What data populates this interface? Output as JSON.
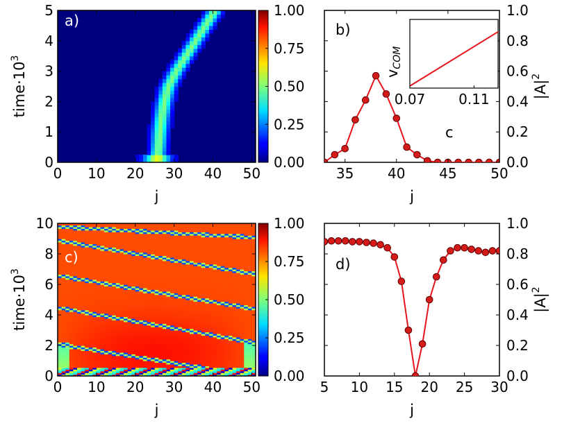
{
  "colors": {
    "line": "#e8141c",
    "marker_fill": "#d61a1a",
    "marker_edge": "#5a0000",
    "axis": "#000000",
    "heat_low": "#00007f",
    "heat_high": "#7f0000"
  },
  "chart_data": [
    {
      "id": "a",
      "type": "heatmap",
      "panel_label": "a)",
      "xlabel": "j",
      "ylabel": "time·10",
      "ylabel_sup": "3",
      "xlim": [
        0,
        51
      ],
      "ylim": [
        0,
        5
      ],
      "xticks": [
        0,
        10,
        20,
        30,
        40,
        50
      ],
      "yticks": [
        0,
        1,
        2,
        3,
        4,
        5
      ],
      "colormap": "jet",
      "colorbar": {
        "range": [
          0,
          1
        ],
        "ticks": [
          "0.00",
          "0.25",
          "0.50",
          "0.75",
          "1.00"
        ]
      },
      "description_data": {
        "background_value": 0.05,
        "ridge_center_j": [
          [
            0,
            25.5
          ],
          [
            0.5,
            26
          ],
          [
            1,
            26.3
          ],
          [
            1.5,
            26.8
          ],
          [
            2,
            27.5
          ],
          [
            2.5,
            28.5
          ],
          [
            3,
            30.5
          ],
          [
            3.5,
            33
          ],
          [
            4,
            35.5
          ],
          [
            4.5,
            38
          ],
          [
            5,
            40.5
          ]
        ],
        "ridge_peak_value": 0.45
      }
    },
    {
      "id": "b",
      "type": "line",
      "panel_label": "b)",
      "xlabel": "j",
      "ylabel": "|A|",
      "ylabel_sup": "2",
      "xlim": [
        33,
        50
      ],
      "ylim": [
        0,
        1
      ],
      "xticks": [
        35,
        40,
        45,
        50
      ],
      "yticks": [
        "0.0",
        "0.2",
        "0.4",
        "0.6",
        "0.8",
        "1.0"
      ],
      "series": [
        {
          "name": "|A|^2",
          "x": [
            33,
            34,
            35,
            36,
            37,
            38,
            39,
            40,
            41,
            42,
            43,
            44,
            45,
            46,
            47,
            48,
            49,
            50
          ],
          "values": [
            0.0,
            0.05,
            0.09,
            0.28,
            0.41,
            0.57,
            0.45,
            0.29,
            0.1,
            0.05,
            0.01,
            0.0,
            0.0,
            0.0,
            0.0,
            0.0,
            0.0,
            0.0
          ]
        }
      ],
      "inset": {
        "type": "line",
        "ylabel": "v",
        "ylabel_sub": "COM",
        "xlabel": "c",
        "xlim": [
          0.07,
          0.125
        ],
        "xticks": [
          "0.07",
          "0.11"
        ],
        "xtick_values": [
          0.07,
          0.11
        ],
        "x": [
          0.07,
          0.125
        ],
        "values": [
          0.03,
          0.82
        ],
        "ylim": [
          0,
          1
        ]
      }
    },
    {
      "id": "c",
      "type": "heatmap",
      "panel_label": "c)",
      "xlabel": "j",
      "ylabel": "time·10",
      "ylabel_sup": "3",
      "xlim": [
        0,
        51
      ],
      "ylim": [
        0,
        10
      ],
      "xticks": [
        0,
        10,
        20,
        30,
        40,
        50
      ],
      "yticks": [
        0,
        2,
        4,
        6,
        8,
        10
      ],
      "colormap": "jet",
      "colorbar": {
        "range": [
          0,
          1
        ],
        "ticks": [
          "0.00",
          "0.25",
          "0.50",
          "0.75",
          "1.00"
        ]
      },
      "description_data": {
        "background_value": 0.82,
        "stripes": [
          {
            "j": [
              0,
              51
            ],
            "t": [
              9.8,
              9.1
            ]
          },
          {
            "j": [
              0,
              51
            ],
            "t": [
              8.9,
              6.7
            ]
          },
          {
            "j": [
              0,
              51
            ],
            "t": [
              6.6,
              4.4
            ]
          },
          {
            "j": [
              0,
              51
            ],
            "t": [
              4.5,
              2.2
            ]
          },
          {
            "j": [
              0,
              51
            ],
            "t": [
              2.1,
              0.0
            ]
          }
        ]
      }
    },
    {
      "id": "d",
      "type": "line",
      "panel_label": "d)",
      "xlabel": "j",
      "ylabel": "|A|",
      "ylabel_sup": "2",
      "xlim": [
        5,
        30
      ],
      "ylim": [
        0,
        1
      ],
      "xticks": [
        5,
        10,
        15,
        20,
        25,
        30
      ],
      "yticks": [
        "0.0",
        "0.2",
        "0.4",
        "0.6",
        "0.8",
        "1.0"
      ],
      "series": [
        {
          "name": "|A|^2",
          "x": [
            5,
            6,
            7,
            8,
            9,
            10,
            11,
            12,
            13,
            14,
            15,
            16,
            17,
            18,
            19,
            20,
            21,
            22,
            23,
            24,
            25,
            26,
            27,
            28,
            29,
            30
          ],
          "values": [
            0.88,
            0.885,
            0.885,
            0.885,
            0.88,
            0.88,
            0.875,
            0.87,
            0.86,
            0.84,
            0.78,
            0.62,
            0.3,
            0.0,
            0.21,
            0.5,
            0.65,
            0.76,
            0.82,
            0.84,
            0.84,
            0.83,
            0.82,
            0.81,
            0.82,
            0.82
          ]
        }
      ]
    }
  ]
}
